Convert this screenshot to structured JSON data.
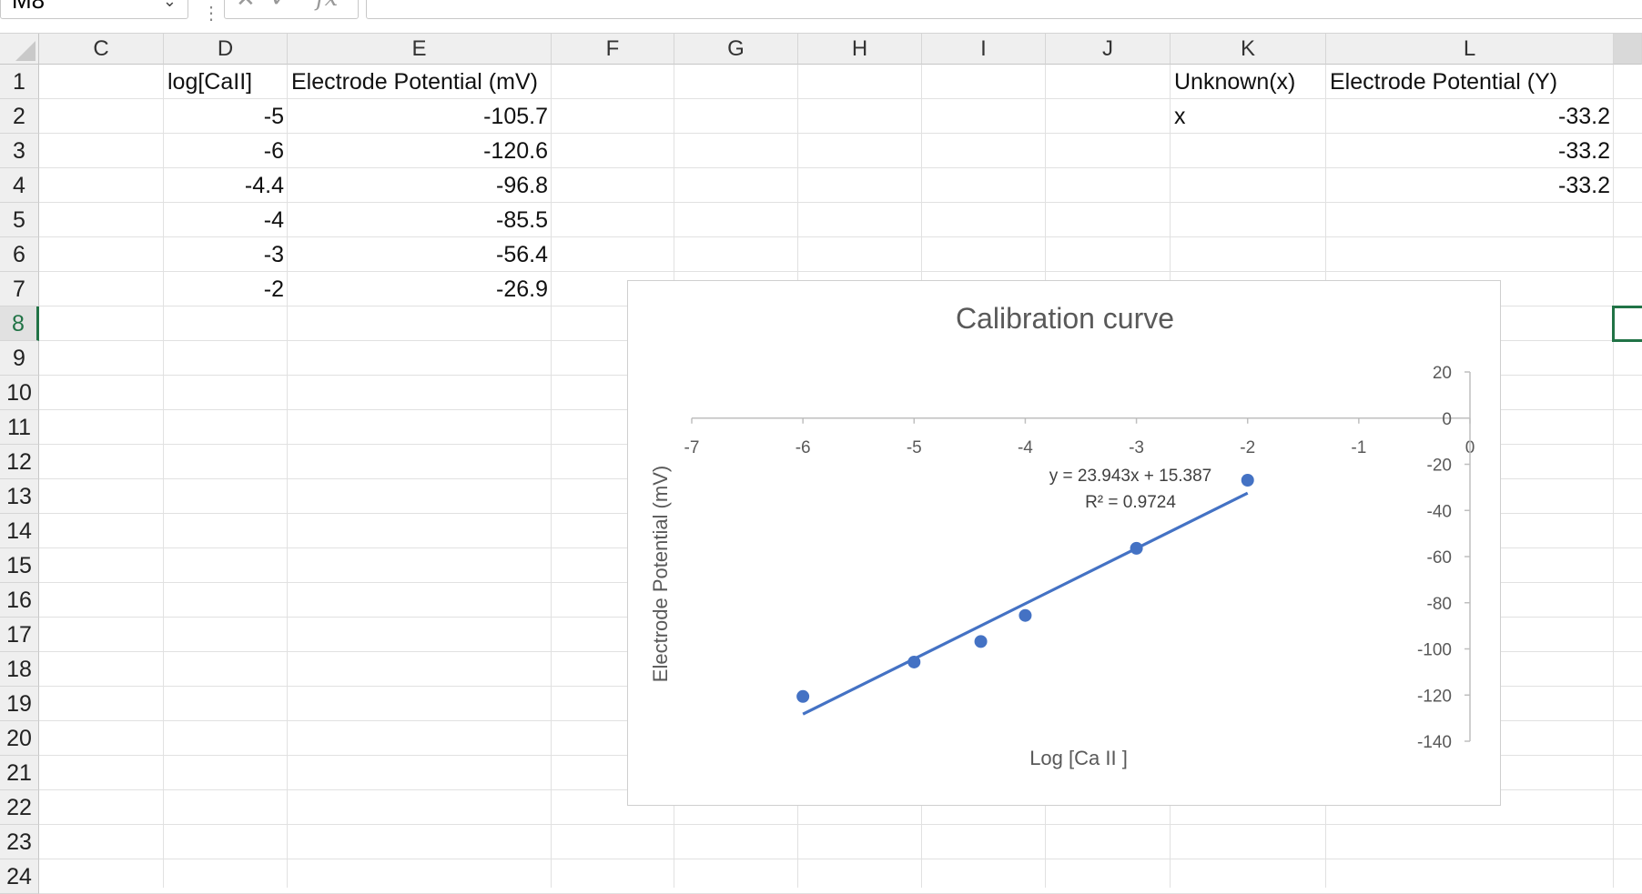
{
  "formula_bar": {
    "name_box": "M8",
    "function_symbol": "fx",
    "cancel_symbol": "✕",
    "enter_symbol": "✓",
    "value": ""
  },
  "columns": [
    "C",
    "D",
    "E",
    "F",
    "G",
    "H",
    "I",
    "J",
    "K",
    "L"
  ],
  "rows": [
    "1",
    "2",
    "3",
    "4",
    "5",
    "6",
    "7",
    "8",
    "9",
    "10",
    "11",
    "12",
    "13",
    "14",
    "15",
    "16",
    "17",
    "18",
    "19",
    "20",
    "21",
    "22",
    "23",
    "24"
  ],
  "active_row": "8",
  "active_cell": "M8",
  "cells": {
    "D1": "log[CaII]",
    "E1": "Electrode Potential (mV)",
    "K1": "Unknown(x)",
    "L1": "Electrode Potential (Y)",
    "D2": "-5",
    "E2": "-105.7",
    "K2": "x",
    "L2": "-33.2",
    "D3": "-6",
    "E3": "-120.6",
    "L3": "-33.2",
    "D4": "-4.4",
    "E4": "-96.8",
    "L4": "-33.2",
    "D5": "-4",
    "E5": "-85.5",
    "D6": "-3",
    "E6": "-56.4",
    "D7": "-2",
    "E7": "-26.9"
  },
  "colors": {
    "accent": "#217346",
    "series": "#4472c4"
  },
  "chart_data": {
    "type": "scatter",
    "title": "Calibration curve",
    "xlabel": "Log [Ca II ]",
    "ylabel": "Electrode Potential (mV)",
    "xlim": [
      -7,
      0
    ],
    "ylim": [
      -140,
      20
    ],
    "x_ticks": [
      -7,
      -6,
      -5,
      -4,
      -3,
      -2,
      -1,
      0
    ],
    "y_ticks": [
      20,
      0,
      -20,
      -40,
      -60,
      -80,
      -100,
      -120,
      -140
    ],
    "x_axis_crosses_at_y": 0,
    "y_axis_position": "right",
    "grid": false,
    "legend": "none",
    "series": [
      {
        "x": [
          -5,
          -6,
          -4.4,
          -4,
          -3,
          -2
        ],
        "y": [
          -105.7,
          -120.6,
          -96.8,
          -85.5,
          -56.4,
          -26.9
        ]
      }
    ],
    "trendline": {
      "type": "linear",
      "slope": 23.943,
      "intercept": 15.387,
      "x_range": [
        -6,
        -2
      ],
      "equation_label": "y = 23.943x + 15.387",
      "r2_label": "R² = 0.9724"
    }
  }
}
